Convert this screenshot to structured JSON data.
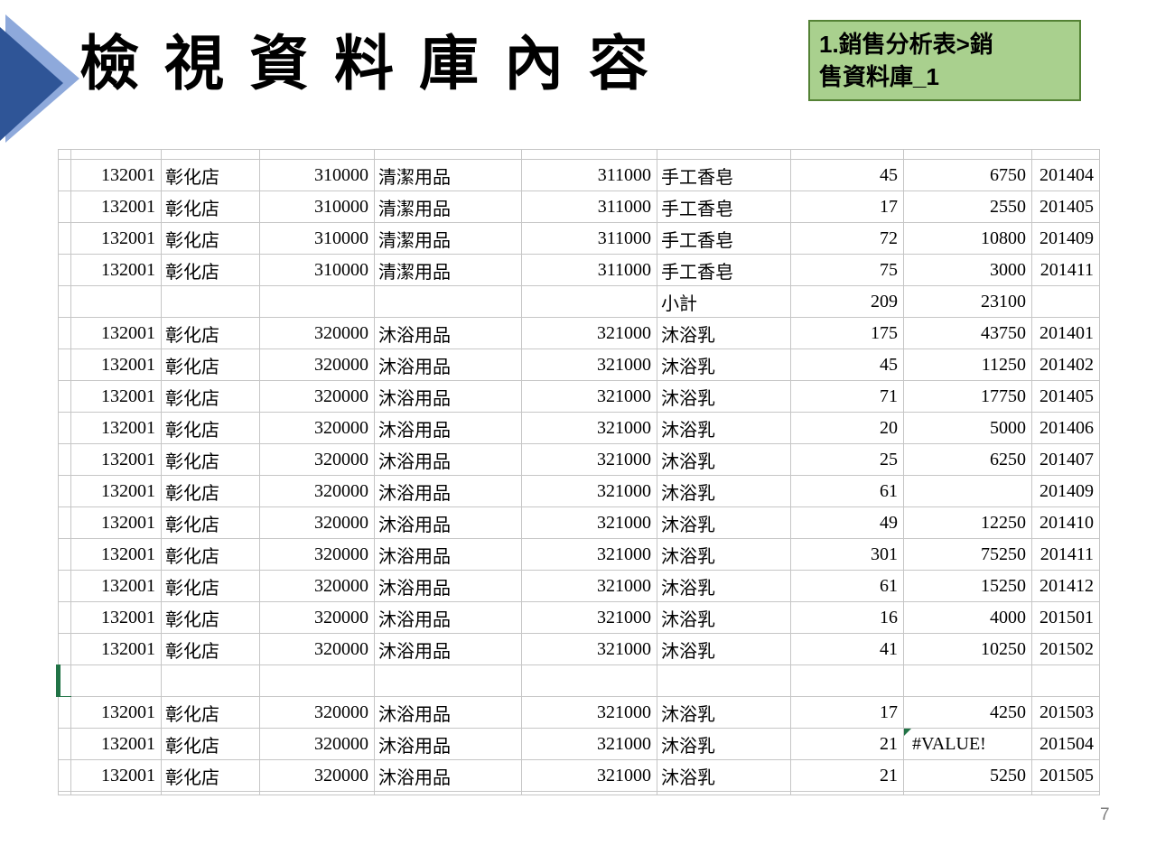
{
  "slide": {
    "title": "檢視資料庫內容",
    "page_number": "7",
    "callout": {
      "text": "1.銷售分析表>銷售資料庫_1",
      "lines": [
        "1.銷售分析表>銷",
        "售資料庫_1"
      ]
    }
  },
  "colors": {
    "accent_dark_blue": "#2F5597",
    "accent_light_blue": "#8EA9DB",
    "callout_bg": "#A9D08E",
    "callout_border": "#548235",
    "gridline_grey": "#C6C6C6",
    "active_cell_green": "#217346",
    "error_indicator_green": "#217346",
    "page_number_grey": "#7F7F7F"
  },
  "table": {
    "columns": [
      {
        "key": "store-code"
      },
      {
        "key": "store-name"
      },
      {
        "key": "category-code"
      },
      {
        "key": "category-name"
      },
      {
        "key": "product-code"
      },
      {
        "key": "product-name"
      },
      {
        "key": "quantity"
      },
      {
        "key": "amount"
      },
      {
        "key": "period"
      }
    ],
    "subtotal_label": "小計",
    "error_value": "#VALUE!",
    "rows": [
      {
        "c": [
          "132001",
          "彰化店",
          "310000",
          "清潔用品",
          "311000",
          "手工香皂",
          "45",
          "6750",
          "201404"
        ]
      },
      {
        "c": [
          "132001",
          "彰化店",
          "310000",
          "清潔用品",
          "311000",
          "手工香皂",
          "17",
          "2550",
          "201405"
        ]
      },
      {
        "c": [
          "132001",
          "彰化店",
          "310000",
          "清潔用品",
          "311000",
          "手工香皂",
          "72",
          "10800",
          "201409"
        ]
      },
      {
        "c": [
          "132001",
          "彰化店",
          "310000",
          "清潔用品",
          "311000",
          "手工香皂",
          "75",
          "3000",
          "201411"
        ]
      },
      {
        "c": [
          "",
          "",
          "",
          "",
          "",
          "小計",
          "209",
          "23100",
          ""
        ],
        "subtotal": true
      },
      {
        "c": [
          "132001",
          "彰化店",
          "320000",
          "沐浴用品",
          "321000",
          "沐浴乳",
          "175",
          "43750",
          "201401"
        ]
      },
      {
        "c": [
          "132001",
          "彰化店",
          "320000",
          "沐浴用品",
          "321000",
          "沐浴乳",
          "45",
          "11250",
          "201402"
        ]
      },
      {
        "c": [
          "132001",
          "彰化店",
          "320000",
          "沐浴用品",
          "321000",
          "沐浴乳",
          "71",
          "17750",
          "201405"
        ]
      },
      {
        "c": [
          "132001",
          "彰化店",
          "320000",
          "沐浴用品",
          "321000",
          "沐浴乳",
          "20",
          "5000",
          "201406"
        ]
      },
      {
        "c": [
          "132001",
          "彰化店",
          "320000",
          "沐浴用品",
          "321000",
          "沐浴乳",
          "25",
          "6250",
          "201407"
        ]
      },
      {
        "c": [
          "132001",
          "彰化店",
          "320000",
          "沐浴用品",
          "321000",
          "沐浴乳",
          "61",
          "",
          "201409"
        ]
      },
      {
        "c": [
          "132001",
          "彰化店",
          "320000",
          "沐浴用品",
          "321000",
          "沐浴乳",
          "49",
          "12250",
          "201410"
        ]
      },
      {
        "c": [
          "132001",
          "彰化店",
          "320000",
          "沐浴用品",
          "321000",
          "沐浴乳",
          "301",
          "75250",
          "201411"
        ]
      },
      {
        "c": [
          "132001",
          "彰化店",
          "320000",
          "沐浴用品",
          "321000",
          "沐浴乳",
          "61",
          "15250",
          "201412"
        ]
      },
      {
        "c": [
          "132001",
          "彰化店",
          "320000",
          "沐浴用品",
          "321000",
          "沐浴乳",
          "16",
          "4000",
          "201501"
        ]
      },
      {
        "c": [
          "132001",
          "彰化店",
          "320000",
          "沐浴用品",
          "321000",
          "沐浴乳",
          "41",
          "10250",
          "201502"
        ]
      },
      {
        "c": [
          "",
          "",
          "",
          "",
          "",
          "",
          "",
          "",
          ""
        ],
        "stub_selected": true
      },
      {
        "c": [
          "132001",
          "彰化店",
          "320000",
          "沐浴用品",
          "321000",
          "沐浴乳",
          "17",
          "4250",
          "201503"
        ]
      },
      {
        "c": [
          "132001",
          "彰化店",
          "320000",
          "沐浴用品",
          "321000",
          "沐浴乳",
          "21",
          "#VALUE!",
          "201504"
        ],
        "error_col": 7
      },
      {
        "c": [
          "132001",
          "彰化店",
          "320000",
          "沐浴用品",
          "321000",
          "沐浴乳",
          "21",
          "5250",
          "201505"
        ]
      }
    ]
  }
}
